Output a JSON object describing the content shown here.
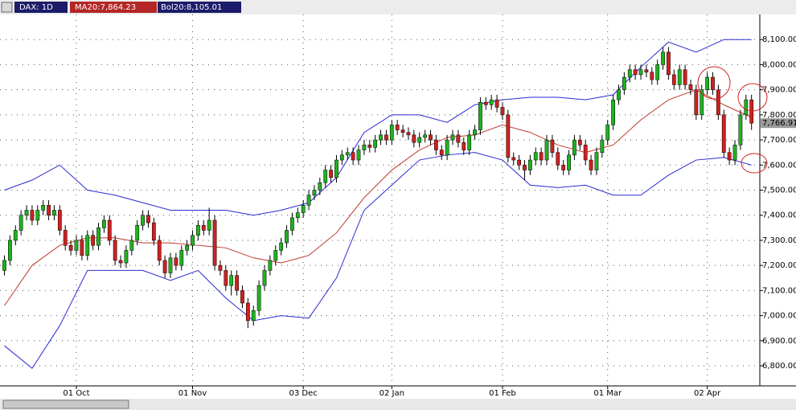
{
  "chart_data": {
    "type": "candlestick",
    "header": {
      "symbol": "DAX: 1D",
      "ma": "MA20:7,864.23",
      "bol": "Bol20:8,105.01"
    },
    "last_price": {
      "value": 7766.91,
      "label": "7,766.91"
    },
    "up_color": "#1fb31f",
    "down_color": "#d02020",
    "ylim": [
      6720,
      8200
    ],
    "yticks": [
      {
        "value": 6800,
        "label": "6,800.00"
      },
      {
        "value": 6900,
        "label": "6,900.00"
      },
      {
        "value": 7000,
        "label": "7,000.00"
      },
      {
        "value": 7100,
        "label": "7,100.00"
      },
      {
        "value": 7200,
        "label": "7,200.00"
      },
      {
        "value": 7300,
        "label": "7,300.00"
      },
      {
        "value": 7400,
        "label": "7,400.00"
      },
      {
        "value": 7500,
        "label": "7,500.00"
      },
      {
        "value": 7600,
        "label": "7,600.00"
      },
      {
        "value": 7700,
        "label": "7,700.00"
      },
      {
        "value": 7800,
        "label": "7,800.00"
      },
      {
        "value": 7900,
        "label": "7,900.00"
      },
      {
        "value": 8000,
        "label": "8,000.00"
      },
      {
        "value": 8100,
        "label": "8,100.00"
      }
    ],
    "xlim": [
      -0.8,
      136.5
    ],
    "xticks": [
      {
        "value": 13,
        "label": "01 Oct"
      },
      {
        "value": 34,
        "label": "01 Nov"
      },
      {
        "value": 54,
        "label": "03 Dec"
      },
      {
        "value": 70,
        "label": "02 Jan"
      },
      {
        "value": 90,
        "label": "01 Feb"
      },
      {
        "value": 109,
        "label": "01 Mar"
      },
      {
        "value": 127,
        "label": "02 Apr"
      }
    ],
    "grid": true,
    "open": [
      7180,
      7220,
      7300,
      7340,
      7400,
      7420,
      7380,
      7420,
      7440,
      7400,
      7420,
      7340,
      7280,
      7260,
      7300,
      7240,
      7320,
      7280,
      7350,
      7380,
      7300,
      7220,
      7210,
      7260,
      7300,
      7360,
      7400,
      7370,
      7300,
      7220,
      7170,
      7230,
      7200,
      7260,
      7280,
      7320,
      7360,
      7340,
      7380,
      7200,
      7180,
      7120,
      7160,
      7100,
      7050,
      6980,
      7020,
      7120,
      7180,
      7220,
      7260,
      7290,
      7340,
      7390,
      7410,
      7440,
      7480,
      7500,
      7530,
      7580,
      7550,
      7620,
      7640,
      7650,
      7620,
      7660,
      7680,
      7670,
      7700,
      7720,
      7700,
      7760,
      7740,
      7730,
      7720,
      7690,
      7710,
      7720,
      7700,
      7660,
      7640,
      7700,
      7720,
      7690,
      7660,
      7720,
      7740,
      7850,
      7840,
      7860,
      7830,
      7800,
      7630,
      7620,
      7600,
      7580,
      7620,
      7650,
      7620,
      7700,
      7650,
      7600,
      7580,
      7640,
      7700,
      7680,
      7620,
      7580,
      7650,
      7700,
      7760,
      7860,
      7900,
      7950,
      7980,
      7960,
      7980,
      7970,
      7940,
      8000,
      8050,
      7960,
      7920,
      7980,
      7920,
      7900,
      7800,
      7900,
      7950,
      7900,
      7800,
      7650,
      7620,
      7680,
      7800,
      7860
    ],
    "high": [
      7240,
      7320,
      7360,
      7420,
      7440,
      7440,
      7440,
      7460,
      7460,
      7440,
      7440,
      7360,
      7300,
      7320,
      7320,
      7340,
      7340,
      7370,
      7400,
      7400,
      7320,
      7240,
      7280,
      7320,
      7380,
      7420,
      7420,
      7390,
      7320,
      7240,
      7250,
      7250,
      7280,
      7300,
      7340,
      7380,
      7380,
      7430,
      7400,
      7220,
      7200,
      7180,
      7180,
      7120,
      7070,
      7040,
      7140,
      7200,
      7240,
      7280,
      7310,
      7360,
      7410,
      7430,
      7460,
      7500,
      7520,
      7550,
      7600,
      7600,
      7640,
      7660,
      7670,
      7670,
      7680,
      7700,
      7700,
      7720,
      7740,
      7740,
      7780,
      7780,
      7760,
      7750,
      7740,
      7730,
      7740,
      7740,
      7720,
      7680,
      7720,
      7740,
      7740,
      7710,
      7740,
      7760,
      7870,
      7870,
      7880,
      7880,
      7850,
      7820,
      7650,
      7640,
      7620,
      7640,
      7670,
      7670,
      7720,
      7720,
      7670,
      7620,
      7660,
      7720,
      7720,
      7700,
      7640,
      7670,
      7720,
      7780,
      7880,
      7920,
      7970,
      8000,
      8000,
      8000,
      8000,
      7990,
      8020,
      8070,
      8070,
      7980,
      8000,
      8000,
      7940,
      7920,
      7920,
      7970,
      7970,
      7920,
      7820,
      7670,
      7700,
      7820,
      7880,
      7880
    ],
    "low": [
      7160,
      7200,
      7280,
      7320,
      7380,
      7360,
      7360,
      7400,
      7380,
      7380,
      7320,
      7260,
      7240,
      7240,
      7220,
      7220,
      7260,
      7260,
      7330,
      7280,
      7200,
      7190,
      7190,
      7240,
      7280,
      7340,
      7350,
      7280,
      7200,
      7150,
      7150,
      7180,
      7180,
      7240,
      7260,
      7300,
      7320,
      7320,
      7180,
      7160,
      7100,
      7080,
      7080,
      7030,
      6950,
      6960,
      7000,
      7100,
      7160,
      7200,
      7240,
      7270,
      7320,
      7370,
      7390,
      7420,
      7460,
      7480,
      7510,
      7530,
      7530,
      7600,
      7620,
      7600,
      7600,
      7640,
      7650,
      7650,
      7680,
      7680,
      7680,
      7720,
      7710,
      7700,
      7670,
      7670,
      7690,
      7680,
      7640,
      7620,
      7620,
      7680,
      7670,
      7640,
      7640,
      7700,
      7720,
      7820,
      7820,
      7810,
      7780,
      7610,
      7600,
      7580,
      7540,
      7560,
      7600,
      7600,
      7600,
      7630,
      7580,
      7560,
      7560,
      7620,
      7660,
      7600,
      7560,
      7560,
      7630,
      7680,
      7740,
      7840,
      7880,
      7930,
      7940,
      7940,
      7950,
      7920,
      7920,
      7980,
      7940,
      7900,
      7900,
      7900,
      7880,
      7780,
      7780,
      7880,
      7880,
      7780,
      7630,
      7600,
      7600,
      7660,
      7780,
      7740
    ],
    "close": [
      7220,
      7300,
      7340,
      7400,
      7420,
      7380,
      7420,
      7440,
      7400,
      7420,
      7340,
      7280,
      7260,
      7300,
      7240,
      7320,
      7280,
      7350,
      7380,
      7300,
      7220,
      7210,
      7260,
      7300,
      7360,
      7400,
      7370,
      7300,
      7220,
      7170,
      7230,
      7200,
      7260,
      7280,
      7320,
      7360,
      7340,
      7380,
      7200,
      7180,
      7120,
      7160,
      7100,
      7050,
      6980,
      7020,
      7120,
      7180,
      7220,
      7260,
      7290,
      7340,
      7390,
      7410,
      7440,
      7480,
      7500,
      7530,
      7580,
      7550,
      7620,
      7640,
      7650,
      7620,
      7660,
      7680,
      7670,
      7700,
      7720,
      7700,
      7760,
      7740,
      7730,
      7720,
      7690,
      7710,
      7720,
      7700,
      7660,
      7640,
      7700,
      7720,
      7690,
      7660,
      7720,
      7740,
      7850,
      7840,
      7860,
      7830,
      7800,
      7630,
      7620,
      7600,
      7580,
      7620,
      7650,
      7620,
      7700,
      7650,
      7600,
      7580,
      7640,
      7700,
      7680,
      7620,
      7580,
      7650,
      7700,
      7760,
      7860,
      7900,
      7950,
      7980,
      7960,
      7980,
      7970,
      7940,
      8000,
      8050,
      7960,
      7920,
      7980,
      7920,
      7900,
      7800,
      7900,
      7950,
      7900,
      7800,
      7650,
      7620,
      7680,
      7800,
      7860,
      7767
    ],
    "overlays": [
      {
        "color": "#c0392b",
        "x": [
          0,
          5,
          10,
          15,
          20,
          25,
          30,
          35,
          40,
          45,
          50,
          55,
          60,
          65,
          70,
          75,
          80,
          85,
          90,
          95,
          100,
          105,
          110,
          115,
          120,
          125,
          130,
          135
        ],
        "values": [
          7040,
          7200,
          7280,
          7310,
          7310,
          7290,
          7290,
          7280,
          7270,
          7230,
          7210,
          7240,
          7330,
          7470,
          7580,
          7660,
          7710,
          7720,
          7760,
          7730,
          7680,
          7650,
          7680,
          7780,
          7860,
          7900,
          7840,
          7790
        ]
      },
      {
        "color": "#2a2ad0",
        "x": [
          0,
          5,
          10,
          15,
          20,
          25,
          30,
          35,
          40,
          45,
          50,
          55,
          60,
          65,
          70,
          75,
          80,
          85,
          90,
          95,
          100,
          105,
          110,
          115,
          120,
          125,
          130,
          135
        ],
        "values": [
          7500,
          7540,
          7600,
          7500,
          7480,
          7450,
          7420,
          7420,
          7420,
          7400,
          7420,
          7450,
          7550,
          7730,
          7800,
          7800,
          7770,
          7840,
          7860,
          7870,
          7870,
          7860,
          7880,
          7990,
          8090,
          8050,
          8100,
          8100
        ]
      },
      {
        "color": "#2a2ad0",
        "x": [
          0,
          5,
          10,
          15,
          20,
          25,
          30,
          35,
          40,
          45,
          50,
          55,
          60,
          65,
          70,
          75,
          80,
          85,
          90,
          95,
          100,
          105,
          110,
          115,
          120,
          125,
          130,
          135
        ],
        "values": [
          6880,
          6790,
          6960,
          7180,
          7180,
          7180,
          7140,
          7180,
          7070,
          6980,
          7000,
          6990,
          7150,
          7420,
          7520,
          7620,
          7640,
          7650,
          7620,
          7520,
          7510,
          7520,
          7480,
          7480,
          7560,
          7620,
          7630,
          7600
        ]
      }
    ]
  }
}
